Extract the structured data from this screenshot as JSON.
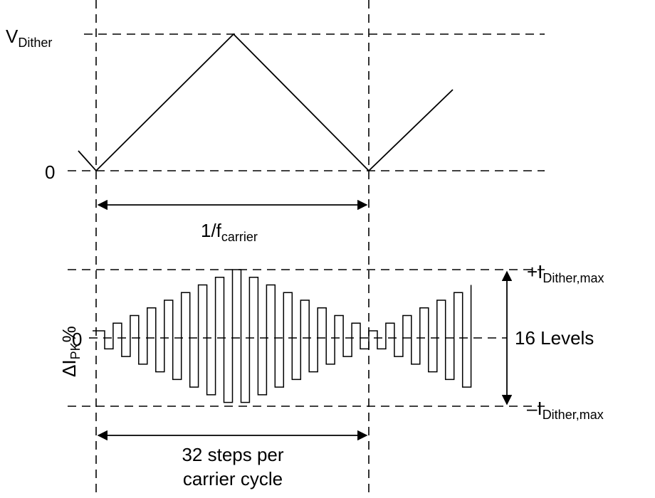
{
  "top_axis": {
    "vmax_main": "V",
    "vmax_sub": "Dither",
    "zero": "0"
  },
  "period_label": {
    "main": "1/f",
    "sub": "carrier"
  },
  "bottom_axis": {
    "ylabel_delta": "Δ",
    "ylabel_i": "I",
    "ylabel_sub": "PK",
    "ylabel_pct": "%",
    "zero": "0",
    "plus_main": "+I",
    "plus_sub": "Dither,max",
    "minus_main": "–I",
    "minus_sub": "Dither,max",
    "levels": "16 Levels"
  },
  "steps_label": {
    "line1": "32 steps per",
    "line2": "carrier cycle"
  },
  "waveform": {
    "steps_per_cycle": 32,
    "levels": 16
  }
}
